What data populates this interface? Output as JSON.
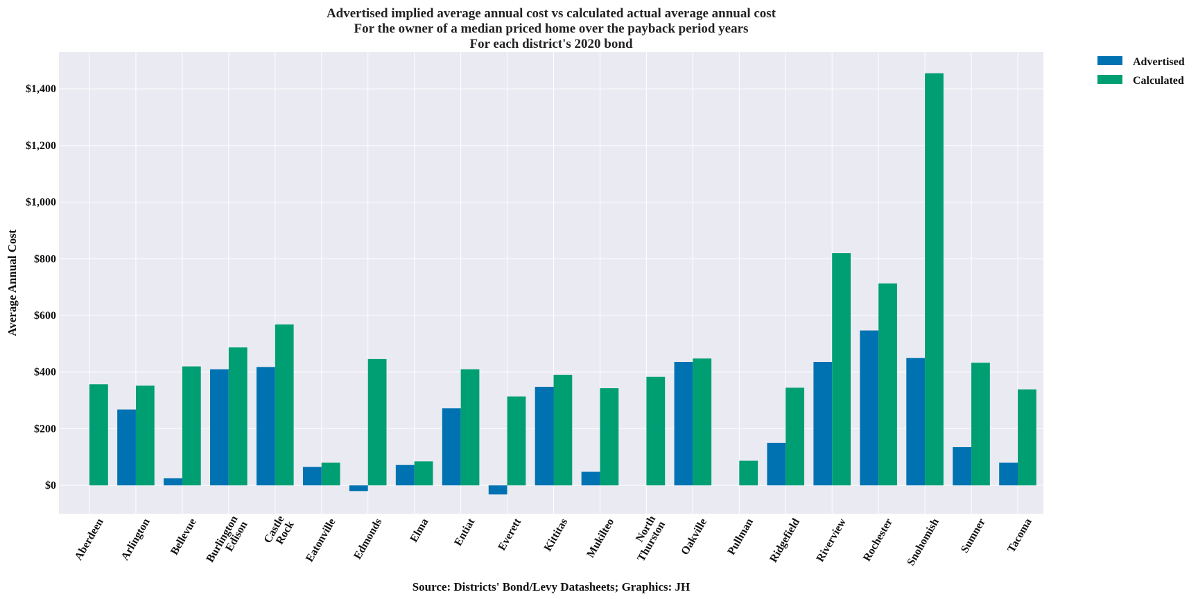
{
  "chart_data": {
    "type": "bar",
    "title_lines": [
      "Advertised implied average annual cost vs calculated actual average annual cost",
      "For the owner of a median priced home over the payback period years",
      "For each district's 2020 bond"
    ],
    "xlabel": "Source: Districts' Bond/Levy Datasheets; Graphics: JH",
    "ylabel": "Average Annual Cost",
    "ylim": [
      -100,
      1530
    ],
    "yticks": [
      0,
      200,
      400,
      600,
      800,
      1000,
      1200,
      1400
    ],
    "ytick_labels": [
      "$0",
      "$200",
      "$400",
      "$600",
      "$800",
      "$1,000",
      "$1,200",
      "$1,400"
    ],
    "grid": true,
    "legend_position": "outside-top-right",
    "categories": [
      [
        "Aberdeen"
      ],
      [
        "Arlington"
      ],
      [
        "Bellevue"
      ],
      [
        "Burlington",
        "Edison"
      ],
      [
        "Castle",
        "Rock"
      ],
      [
        "Eatonville"
      ],
      [
        "Edmonds"
      ],
      [
        "Elma"
      ],
      [
        "Entiat"
      ],
      [
        "Everett"
      ],
      [
        "Kittitas"
      ],
      [
        "Mukilteo"
      ],
      [
        "North",
        "Thurston"
      ],
      [
        "Oakville"
      ],
      [
        "Pullman"
      ],
      [
        "Ridgefield"
      ],
      [
        "Riverview"
      ],
      [
        "Rochester"
      ],
      [
        "Snohomish"
      ],
      [
        "Sumner"
      ],
      [
        "Tacoma"
      ]
    ],
    "series": [
      {
        "name": "Advertised",
        "color": "#0072b2",
        "values": [
          0,
          268,
          25,
          410,
          418,
          65,
          -20,
          72,
          272,
          -32,
          348,
          48,
          0,
          436,
          0,
          150,
          436,
          547,
          450,
          135,
          80
        ]
      },
      {
        "name": "Calculated",
        "color": "#009e73",
        "values": [
          357,
          352,
          420,
          487,
          568,
          80,
          446,
          85,
          410,
          314,
          390,
          343,
          383,
          448,
          87,
          345,
          820,
          713,
          1455,
          433,
          339
        ]
      }
    ],
    "colors": {
      "plot_background": "#eaeaf2",
      "grid": "#ffffff"
    }
  }
}
